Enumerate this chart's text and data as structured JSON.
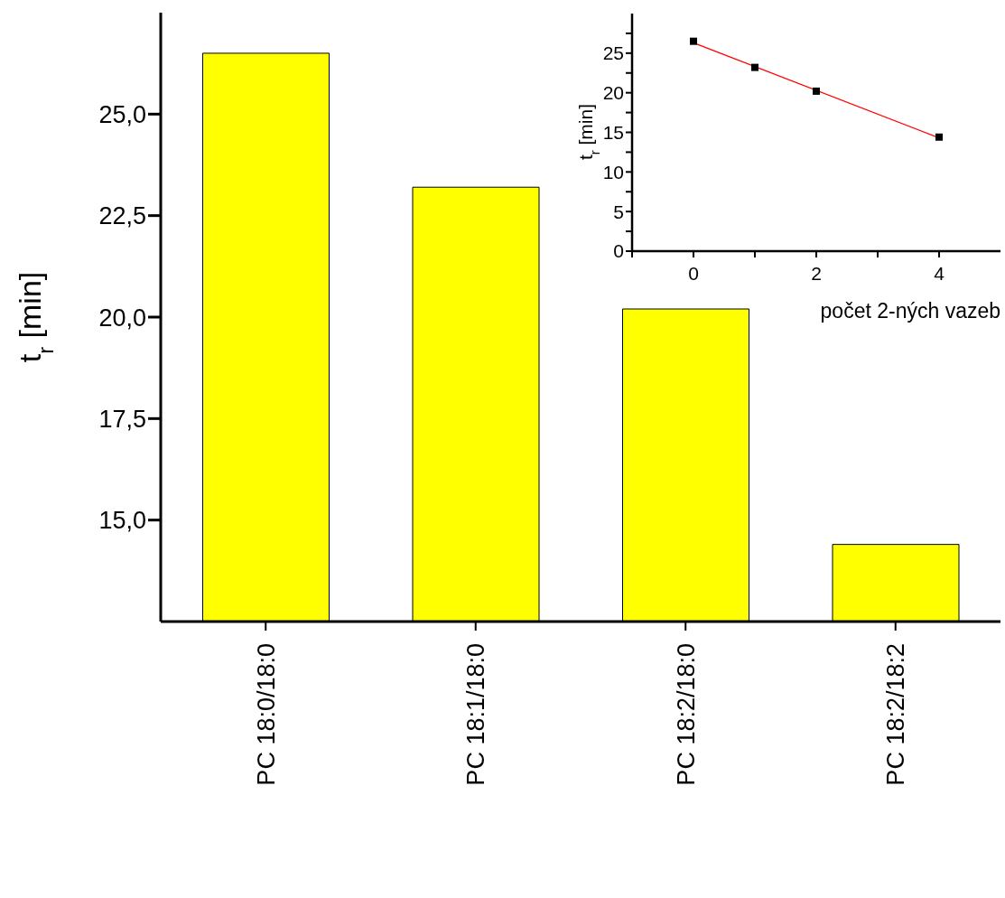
{
  "chart_data": [
    {
      "type": "bar",
      "ylabel": "t$_{r}$ [min]",
      "categories": [
        "PC 18:0/18:0",
        "PC 18:1/18:0",
        "PC 18:2/18:0",
        "PC 18:2/18:2"
      ],
      "values": [
        26.5,
        23.2,
        20.2,
        14.4
      ],
      "color": "#ffff00",
      "ylim": [
        12.5,
        27.5
      ],
      "yticks": [
        {
          "value": 15,
          "label": "15,0"
        },
        {
          "value": 17.5,
          "label": "17,5"
        },
        {
          "value": 20,
          "label": "20,0"
        },
        {
          "value": 22.5,
          "label": "22,5"
        },
        {
          "value": 25,
          "label": "25,0"
        }
      ],
      "grid": false,
      "legend": false
    },
    {
      "type": "scatter",
      "xlabel": "počet 2-ných vazeb",
      "ylabel": "t$_{r}$ [min]",
      "series": [
        {
          "type": "scatter",
          "color": "#000000",
          "marker": "square",
          "x": [
            0,
            1,
            2,
            4
          ],
          "values": [
            26.5,
            23.2,
            20.2,
            14.4
          ]
        },
        {
          "type": "line",
          "color": "#ff0000",
          "marker": "none",
          "x": [
            0,
            4
          ],
          "values": [
            26.3,
            14.3
          ]
        }
      ],
      "xlim": [
        -1,
        5
      ],
      "xticks": [
        {
          "value": -1,
          "label": null
        },
        0,
        {
          "value": 1,
          "label": null
        },
        2,
        {
          "value": 3,
          "label": null
        },
        4
      ],
      "ylim": [
        0,
        30
      ],
      "yticks": [
        0,
        {
          "value": 2.5,
          "label": null
        },
        5,
        {
          "value": 7.5,
          "label": null
        },
        10,
        {
          "value": 12.5,
          "label": null
        },
        15,
        {
          "value": 17.5,
          "label": null
        },
        20,
        {
          "value": 22.5,
          "label": null
        },
        25,
        {
          "value": 27.5,
          "label": null
        }
      ],
      "grid": false,
      "legend": false
    }
  ]
}
